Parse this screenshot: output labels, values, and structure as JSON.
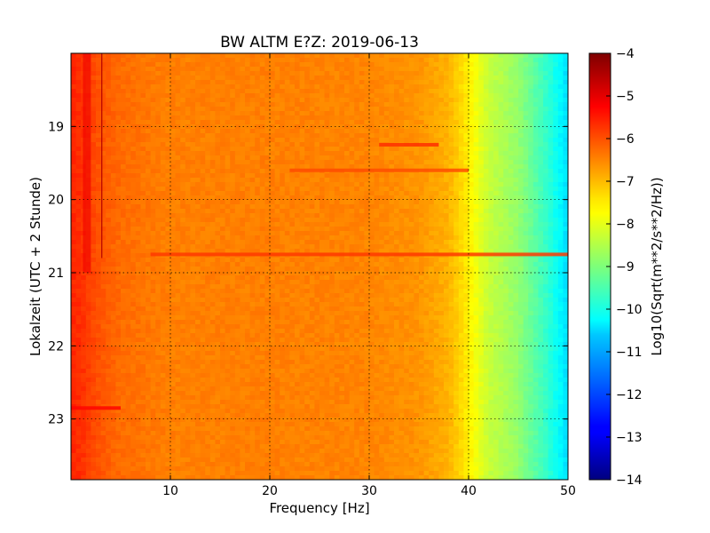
{
  "chart_data": {
    "type": "heatmap",
    "title": "BW ALTM E?Z: 2019-06-13",
    "xlabel": "Frequency [Hz]",
    "ylabel": "Lokalzeit (UTC + 2 Stunde)",
    "xlim": [
      0,
      50
    ],
    "ylim": [
      18.0,
      23.83
    ],
    "y_inverted": true,
    "x_ticks": [
      10,
      20,
      30,
      40,
      50
    ],
    "y_ticks": [
      19,
      20,
      21,
      22,
      23
    ],
    "grid": true,
    "colormap": "jet",
    "colorbar": {
      "label": "Log10(Sqrt(m**2/s**2/Hz))",
      "range": [
        -14,
        -4
      ],
      "ticks": [
        -4,
        -5,
        -6,
        -7,
        -8,
        -9,
        -10,
        -11,
        -12,
        -13,
        -14
      ]
    },
    "spectrum_profile": {
      "frequency_hz": [
        0,
        1,
        2,
        3,
        5,
        10,
        20,
        30,
        35,
        38,
        40,
        42,
        45,
        48,
        50
      ],
      "log10_amplitude": [
        -5.6,
        -5.7,
        -5.9,
        -6.1,
        -6.3,
        -6.5,
        -6.5,
        -6.55,
        -6.7,
        -7.0,
        -7.6,
        -8.3,
        -8.8,
        -9.8,
        -10.6
      ]
    },
    "features": [
      {
        "type": "horizontal_band",
        "time": 20.75,
        "freq_range": [
          8,
          50
        ],
        "log10_amplitude": -5.8
      },
      {
        "type": "horizontal_band",
        "time": 19.25,
        "freq_range": [
          31,
          37
        ],
        "log10_amplitude": -5.7
      },
      {
        "type": "horizontal_band",
        "time": 19.6,
        "freq_range": [
          22,
          40
        ],
        "log10_amplitude": -6.0
      },
      {
        "type": "horizontal_band",
        "time": 22.85,
        "freq_range": [
          0,
          5
        ],
        "log10_amplitude": -5.3
      },
      {
        "type": "vertical_line",
        "freq": 3.1,
        "time_range": [
          18.0,
          20.8
        ]
      },
      {
        "type": "vertical_band",
        "freq_range": [
          1.2,
          2.0
        ],
        "time_range": [
          18.0,
          21.0
        ],
        "log10_amplitude": -5.1
      }
    ]
  }
}
